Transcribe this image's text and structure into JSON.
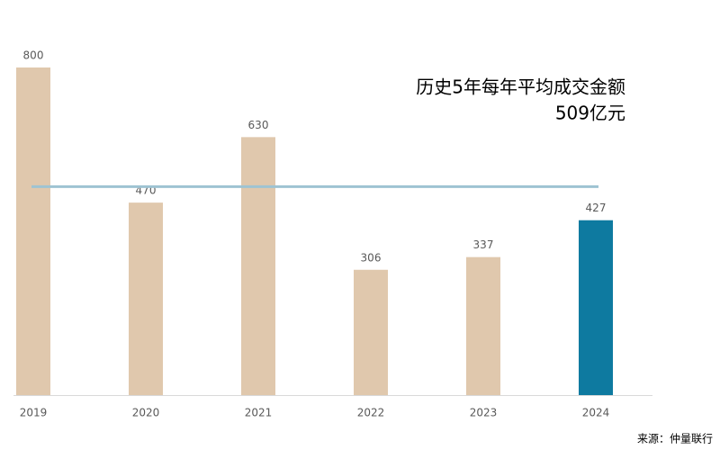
{
  "chart_data": {
    "type": "bar",
    "categories": [
      "2019",
      "2020",
      "2021",
      "2022",
      "2023",
      "2024"
    ],
    "values": [
      800,
      470,
      630,
      306,
      337,
      427
    ],
    "colors": [
      "#e0c8ad",
      "#e0c8ad",
      "#e0c8ad",
      "#e0c8ad",
      "#e0c8ad",
      "#0e7aa0"
    ],
    "ylim": [
      0,
      800
    ],
    "reference_line": {
      "value": 509,
      "color": "#9ec3d2"
    },
    "annotation": [
      "历史5年每年平均成交金额",
      "509亿元"
    ],
    "source": "来源：仲量联行"
  }
}
